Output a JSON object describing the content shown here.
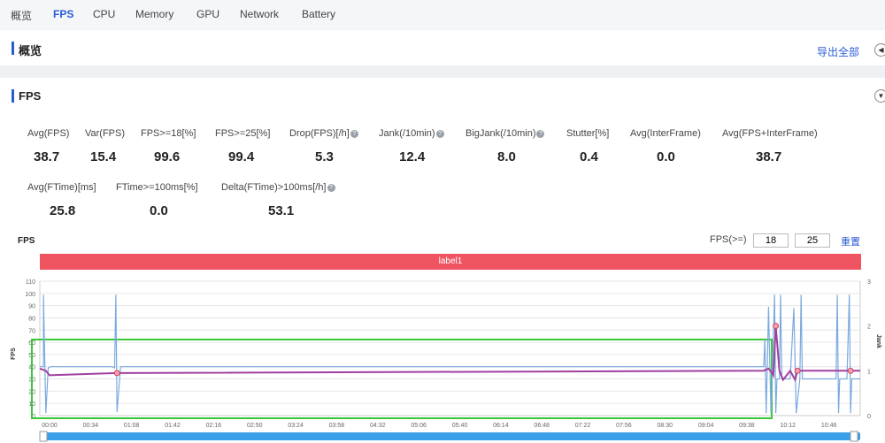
{
  "tabs": [
    {
      "label": "概览",
      "active": false
    },
    {
      "label": "FPS",
      "active": true
    },
    {
      "label": "CPU",
      "active": false
    },
    {
      "label": "Memory",
      "active": false
    },
    {
      "label": "GPU",
      "active": false
    },
    {
      "label": "Network",
      "active": false
    },
    {
      "label": "Battery",
      "active": false
    }
  ],
  "overview": {
    "title": "概览",
    "export_label": "导出全部"
  },
  "fps_section": {
    "title": "FPS",
    "metrics_row1": [
      {
        "label": "Avg(FPS)",
        "value": "38.7",
        "help": false
      },
      {
        "label": "Var(FPS)",
        "value": "15.4",
        "help": false
      },
      {
        "label": "FPS>=18[%]",
        "value": "99.6",
        "help": false
      },
      {
        "label": "FPS>=25[%]",
        "value": "99.4",
        "help": false
      },
      {
        "label": "Drop(FPS)[/h]",
        "value": "5.3",
        "help": true
      },
      {
        "label": "Jank(/10min)",
        "value": "12.4",
        "help": true
      },
      {
        "label": "BigJank(/10min)",
        "value": "8.0",
        "help": true
      },
      {
        "label": "Stutter[%]",
        "value": "0.4",
        "help": false
      },
      {
        "label": "Avg(InterFrame)",
        "value": "0.0",
        "help": false
      },
      {
        "label": "Avg(FPS+InterFrame)",
        "value": "38.7",
        "help": false
      }
    ],
    "metrics_row2": [
      {
        "label": "Avg(FTime)[ms]",
        "value": "25.8",
        "help": false
      },
      {
        "label": "FTime>=100ms[%]",
        "value": "0.0",
        "help": false
      },
      {
        "label": "Delta(FTime)>100ms[/h]",
        "value": "53.1",
        "help": true
      }
    ]
  },
  "chart_controls": {
    "title": "FPS",
    "fps_label": "FPS(>=)",
    "threshold1": "18",
    "threshold2": "25",
    "reset_label": "重置"
  },
  "colors": {
    "accent": "#2a5bd7",
    "label_bar": "#ef5561",
    "fps_line": "#7aa9e0",
    "jank_line": "#a040a0",
    "selection": "#3ac73a",
    "scrollbar": "#3a9ee8"
  },
  "chart_data": {
    "type": "line",
    "label_band": "label1",
    "ylabel": "FPS",
    "y2label": "Jank",
    "ylim": [
      0,
      110
    ],
    "y2lim": [
      0,
      3
    ],
    "yticks": [
      "0",
      "10",
      "20",
      "30",
      "40",
      "50",
      "60",
      "70",
      "80",
      "90",
      "100",
      "110"
    ],
    "y2ticks": [
      "0",
      "1",
      "2",
      "3"
    ],
    "xticks": [
      "00:00",
      "00:34",
      "01:08",
      "01:42",
      "02:16",
      "02:50",
      "03:24",
      "03:58",
      "04:32",
      "05:06",
      "05:40",
      "06:14",
      "06:48",
      "07:22",
      "07:56",
      "08:30",
      "09:04",
      "09:38",
      "10:12",
      "10:46"
    ],
    "xlim_seconds": [
      0,
      680
    ],
    "series": [
      {
        "name": "FPS",
        "x": [
          0,
          3,
          3,
          5,
          7,
          9,
          10,
          60,
          62,
          63,
          64,
          67,
          68,
          600,
          601,
          602,
          603,
          604,
          606,
          608,
          609,
          610,
          611,
          612,
          613,
          614,
          615,
          620,
          622,
          625,
          627,
          630,
          631,
          632,
          640,
          650,
          660,
          661,
          662,
          663,
          664,
          666,
          669,
          671,
          672,
          673,
          675,
          676,
          680
        ],
        "y": [
          40,
          40,
          99,
          2,
          39,
          40,
          40,
          40,
          39,
          99,
          3,
          40,
          40,
          40,
          62,
          2,
          40,
          89,
          2,
          62,
          99,
          2,
          30,
          30,
          30,
          99,
          30,
          30,
          30,
          88,
          2,
          30,
          99,
          30,
          30,
          30,
          30,
          99,
          2,
          30,
          30,
          30,
          30,
          99,
          2,
          30,
          30,
          30,
          30
        ]
      },
      {
        "name": "Jank",
        "x": [
          0,
          5,
          8,
          64,
          600,
          604,
          607,
          608,
          610,
          613,
          616,
          622,
          626,
          628,
          660,
          672,
          680
        ],
        "y": [
          1.05,
          1.0,
          0.9,
          0.95,
          1.0,
          1.05,
          0.95,
          0.9,
          2.0,
          1.0,
          0.8,
          1.0,
          0.8,
          1.0,
          1.0,
          1.0,
          1.0
        ]
      }
    ]
  }
}
